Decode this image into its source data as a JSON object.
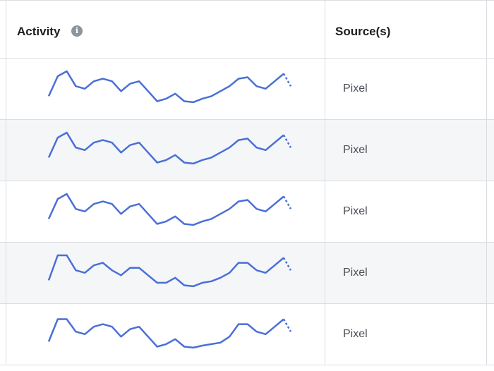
{
  "header": {
    "activity_label": "Activity",
    "source_label": "Source(s)",
    "info_icon": "info-icon"
  },
  "colors": {
    "line": "#4a6fd8",
    "stripe": "#f5f6f7",
    "border": "#dadde1"
  },
  "rows": [
    {
      "source": "Pixel",
      "activity": [
        4,
        8,
        9,
        6,
        5.5,
        7,
        7.5,
        7,
        5,
        6.5,
        7,
        5,
        3,
        3.5,
        4.5,
        3,
        2.8,
        3.5,
        4,
        5,
        6,
        7.5,
        7.8,
        6,
        5.5,
        7,
        8.5
      ],
      "partial": 6
    },
    {
      "source": "Pixel",
      "activity": [
        4,
        8,
        9,
        6,
        5.5,
        7,
        7.5,
        7,
        5,
        6.5,
        7,
        5,
        3,
        3.5,
        4.5,
        3,
        2.8,
        3.5,
        4,
        5,
        6,
        7.5,
        7.8,
        6,
        5.5,
        7,
        8.5
      ],
      "partial": 6
    },
    {
      "source": "Pixel",
      "activity": [
        4,
        8,
        9,
        6,
        5.5,
        7,
        7.5,
        7,
        5,
        6.5,
        7,
        5,
        3,
        3.5,
        4.5,
        3,
        2.8,
        3.5,
        4,
        5,
        6,
        7.5,
        7.8,
        6,
        5.5,
        7,
        8.5
      ],
      "partial": 6
    },
    {
      "source": "Pixel",
      "activity": [
        4,
        9,
        9,
        6,
        5.5,
        7,
        7.5,
        6,
        5,
        6.5,
        6.5,
        5,
        3.5,
        3.5,
        4.5,
        3,
        2.8,
        3.5,
        3.8,
        4.5,
        5.5,
        7.5,
        7.5,
        6,
        5.5,
        7,
        8.5
      ],
      "partial": 6
    },
    {
      "source": "Pixel",
      "activity": [
        4,
        8.5,
        8.5,
        6,
        5.5,
        7,
        7.5,
        7,
        5,
        6.5,
        7,
        5,
        3,
        3.5,
        4.5,
        3,
        2.8,
        3.2,
        3.5,
        3.8,
        5,
        7.5,
        7.5,
        6,
        5.5,
        7,
        8.5
      ],
      "partial": 6
    }
  ]
}
